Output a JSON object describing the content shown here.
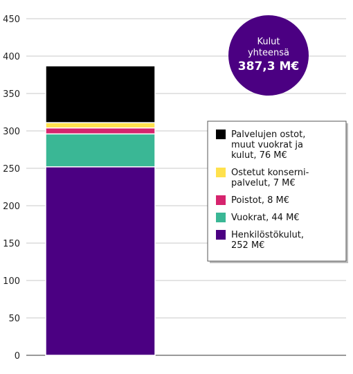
{
  "chart_data": {
    "type": "bar",
    "stacked": true,
    "categories": [
      ""
    ],
    "series": [
      {
        "name": "Henkilöstökulut, 252 M€",
        "values": [
          252
        ],
        "color": "#4b0082"
      },
      {
        "name": "Vuokrat, 44 M€",
        "values": [
          44
        ],
        "color": "#3ab795"
      },
      {
        "name": "Poistot, 8 M€",
        "values": [
          8
        ],
        "color": "#d6246e"
      },
      {
        "name": "Ostetut konsernipalvelut, 7 M€",
        "values": [
          7
        ],
        "color": "#ffe14d"
      },
      {
        "name": "Palvelujen ostot, muut vuokrat ja kulut, 76 M€",
        "values": [
          76
        ],
        "color": "#000000"
      }
    ],
    "ylim": [
      0,
      450
    ],
    "yticks": [
      0,
      50,
      100,
      150,
      200,
      250,
      300,
      350,
      400,
      450
    ],
    "grid": true,
    "legend_position": "right",
    "legend_order": [
      4,
      3,
      2,
      1,
      0
    ],
    "legend_labels": [
      [
        "Henkilöstökulut,",
        "252 M€"
      ],
      [
        "Vuokrat, 44 M€"
      ],
      [
        "Poistot, 8 M€"
      ],
      [
        "Ostetut konserni-",
        "palvelut, 7 M€"
      ],
      [
        "Palvelujen ostot,",
        "muut vuokrat ja",
        "kulut, 76 M€"
      ]
    ],
    "total_badge": {
      "line1": "Kulut",
      "line2": "yhteensä",
      "value": "387,3 M€",
      "color": "#4b0082"
    }
  }
}
